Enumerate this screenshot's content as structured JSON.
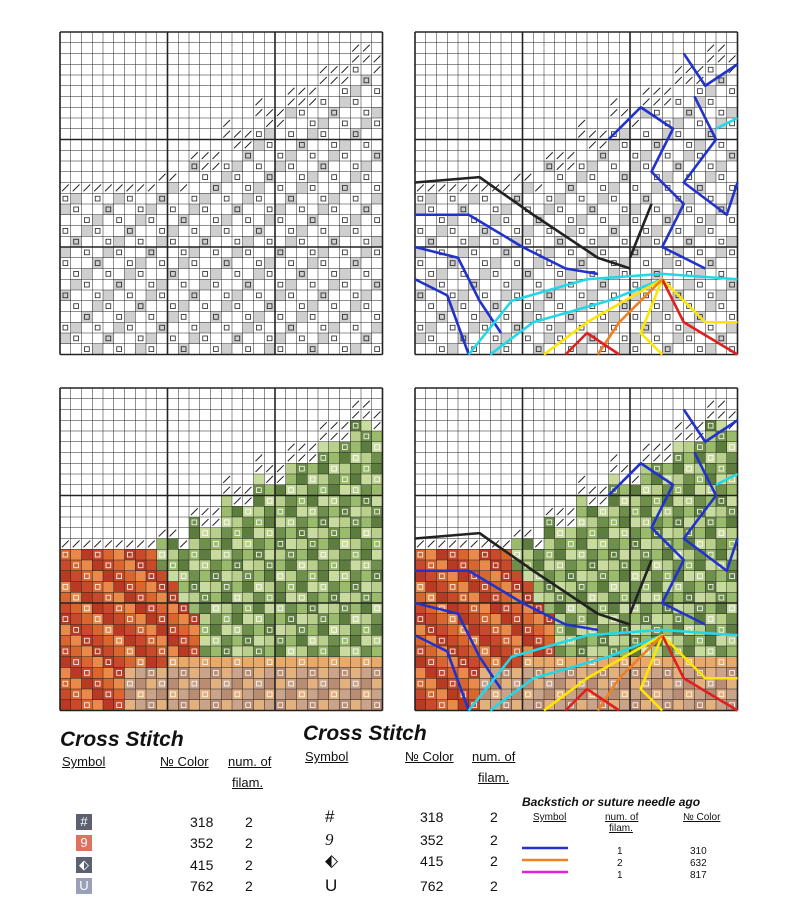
{
  "legend_left": {
    "title": "Cross Stitch",
    "headers": [
      "Symbol",
      "№ Color",
      "num. of",
      "filam."
    ],
    "rows": [
      {
        "symbol": "#",
        "color": 318,
        "filam": 2
      },
      {
        "symbol": "9",
        "color": 352,
        "filam": 2
      },
      {
        "symbol": "⬖",
        "color": 415,
        "filam": 2
      },
      {
        "symbol": "U",
        "color": 762,
        "filam": 2
      }
    ]
  },
  "legend_right": {
    "title": "Cross Stitch",
    "headers": [
      "Symbol",
      "№ Color",
      "num. of",
      "filam."
    ],
    "rows": [
      {
        "symbol": "#",
        "color": 318,
        "filam": 2
      },
      {
        "symbol": "9",
        "color": 352,
        "filam": 2
      },
      {
        "symbol": "⬖",
        "color": 415,
        "filam": 2
      },
      {
        "symbol": "U",
        "color": 762,
        "filam": 2
      }
    ]
  },
  "backstitch": {
    "title": "Backstich or suture needle ago",
    "headers": [
      "Symbol",
      "num. of",
      "filam.",
      "№ Color"
    ],
    "rows": [
      {
        "filam": 1,
        "color": 310
      },
      {
        "filam": 2,
        "color": 632
      },
      {
        "filam": 1,
        "color": 817
      }
    ]
  }
}
